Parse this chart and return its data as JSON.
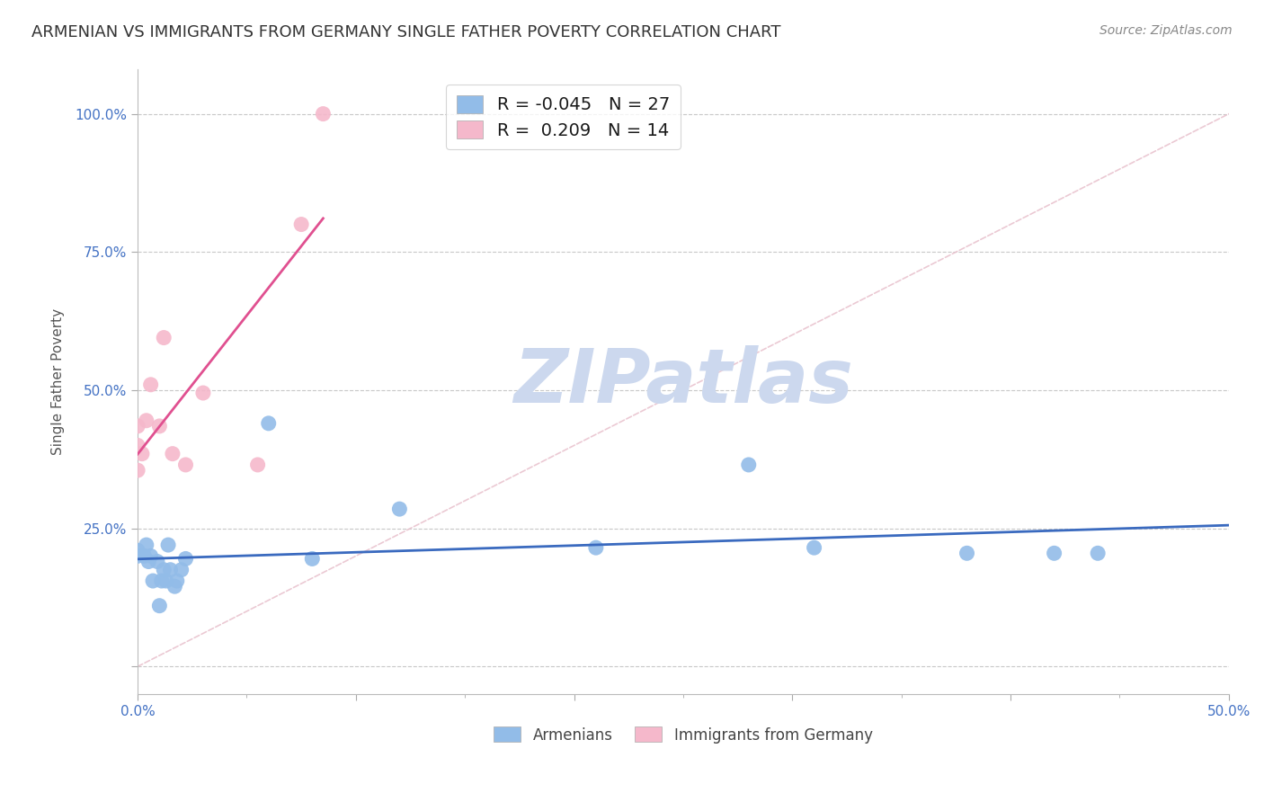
{
  "title": "ARMENIAN VS IMMIGRANTS FROM GERMANY SINGLE FATHER POVERTY CORRELATION CHART",
  "source": "Source: ZipAtlas.com",
  "ylabel": "Single Father Poverty",
  "watermark": "ZIPatlas",
  "xlim": [
    0.0,
    0.5
  ],
  "ylim": [
    -0.05,
    1.08
  ],
  "R_armenian": -0.045,
  "N_armenian": 27,
  "R_germany": 0.209,
  "N_germany": 14,
  "armenian_color": "#92bce8",
  "germany_color": "#f5b8cb",
  "armenian_line_color": "#3a6abf",
  "germany_line_color": "#e05090",
  "legend_box_armenian_color": "#92bce8",
  "legend_box_germany_color": "#f5b8cb",
  "armenian_x": [
    0.0,
    0.0,
    0.003,
    0.004,
    0.005,
    0.006,
    0.007,
    0.009,
    0.01,
    0.011,
    0.012,
    0.013,
    0.014,
    0.015,
    0.017,
    0.018,
    0.02,
    0.022,
    0.06,
    0.08,
    0.12,
    0.21,
    0.28,
    0.31,
    0.38,
    0.42,
    0.44
  ],
  "armenian_y": [
    0.2,
    0.21,
    0.2,
    0.22,
    0.19,
    0.2,
    0.155,
    0.19,
    0.11,
    0.155,
    0.175,
    0.155,
    0.22,
    0.175,
    0.145,
    0.155,
    0.175,
    0.195,
    0.44,
    0.195,
    0.285,
    0.215,
    0.365,
    0.215,
    0.205,
    0.205,
    0.205
  ],
  "germany_x": [
    0.0,
    0.0,
    0.0,
    0.002,
    0.004,
    0.006,
    0.01,
    0.012,
    0.016,
    0.022,
    0.03,
    0.055,
    0.075,
    0.085
  ],
  "germany_y": [
    0.355,
    0.4,
    0.435,
    0.385,
    0.445,
    0.51,
    0.435,
    0.595,
    0.385,
    0.365,
    0.495,
    0.365,
    0.8,
    1.0
  ],
  "germany_line_x0": 0.0,
  "germany_line_x1": 0.085,
  "armenian_line_x0": 0.0,
  "armenian_line_x1": 0.5,
  "diag_line_color": "#e8c0cc",
  "title_fontsize": 13,
  "axis_label_fontsize": 11,
  "tick_fontsize": 11,
  "legend_fontsize": 14,
  "source_fontsize": 10,
  "background_color": "#ffffff",
  "grid_color": "#c8c8c8",
  "watermark_color": "#ccd8ee",
  "watermark_fontsize": 60
}
